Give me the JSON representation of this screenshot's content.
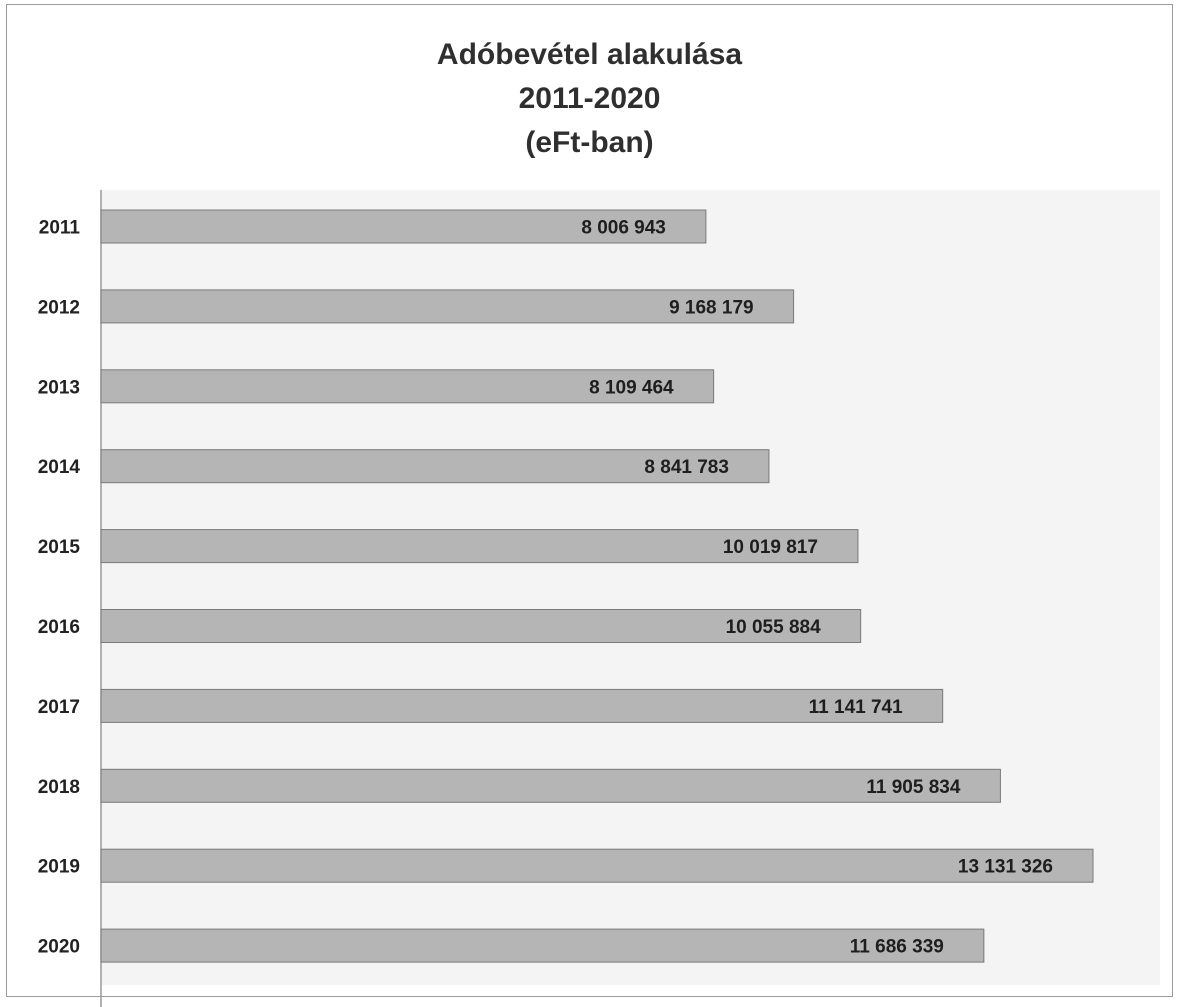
{
  "chart_data": {
    "type": "bar",
    "orientation": "horizontal",
    "title": [
      "Adóbevétel alakulása",
      "2011-2020",
      "(eFt-ban)"
    ],
    "categories": [
      "2011",
      "2012",
      "2013",
      "2014",
      "2015",
      "2016",
      "2017",
      "2018",
      "2019",
      "2020"
    ],
    "values": [
      8006943,
      9168179,
      8109464,
      8841783,
      10019817,
      10055884,
      11141741,
      11905834,
      13131326,
      11686339
    ],
    "data_labels": [
      "8 006 943",
      "9 168 179",
      "8 109 464",
      "8 841 783",
      "10 019 817",
      "10 055 884",
      "11 141 741",
      "11 905 834",
      "13 131 326",
      "11 686 339"
    ],
    "xlim": [
      0,
      14100000
    ],
    "xlabel": "",
    "ylabel": "",
    "grid": false,
    "legend": "none",
    "colors": {
      "bar_fill": "#b5b5b5",
      "bar_stroke": "#7a7a7a",
      "plot_background": "#f4f4f4",
      "axis": "#9a9a9a"
    }
  }
}
